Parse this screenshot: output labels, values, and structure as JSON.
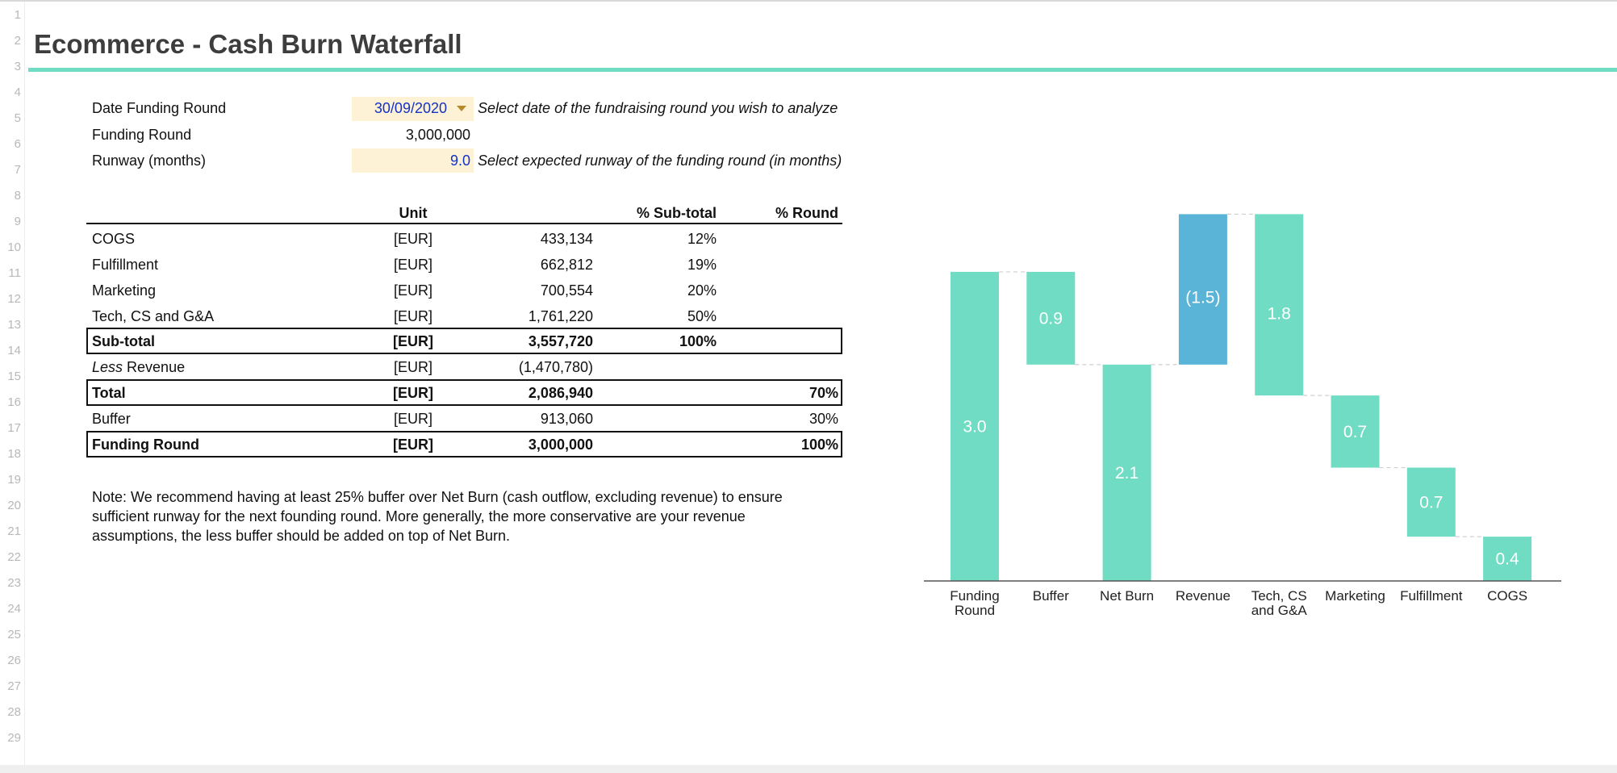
{
  "sheet": {
    "row_numbers": [
      "1",
      "2",
      "3",
      "4",
      "5",
      "6",
      "7",
      "8",
      "9",
      "10",
      "11",
      "12",
      "13",
      "14",
      "15",
      "16",
      "17",
      "18",
      "19",
      "20",
      "21",
      "22",
      "23",
      "24",
      "25",
      "26",
      "27",
      "28",
      "29"
    ],
    "title": "Ecommerce - Cash Burn Waterfall"
  },
  "inputs": {
    "date_label": "Date Funding Round",
    "date_value": "30/09/2020",
    "date_hint": "Select date of the fundraising round you wish to analyze",
    "funding_label": "Funding Round",
    "funding_value": "3,000,000",
    "runway_label": "Runway (months)",
    "runway_value": "9.0",
    "runway_hint": "Select expected runway of the funding round (in months)"
  },
  "table": {
    "headers": {
      "unit": "Unit",
      "sub_pct": "% Sub-total",
      "round_pct": "% Round"
    },
    "rows": [
      {
        "label": "COGS",
        "unit": "[EUR]",
        "value": "433,134",
        "sub_pct": "12%",
        "round_pct": ""
      },
      {
        "label": "Fulfillment",
        "unit": "[EUR]",
        "value": "662,812",
        "sub_pct": "19%",
        "round_pct": ""
      },
      {
        "label": "Marketing",
        "unit": "[EUR]",
        "value": "700,554",
        "sub_pct": "20%",
        "round_pct": ""
      },
      {
        "label": "Tech, CS and G&A",
        "unit": "[EUR]",
        "value": "1,761,220",
        "sub_pct": "50%",
        "round_pct": ""
      },
      {
        "label": "Sub-total",
        "unit": "[EUR]",
        "value": "3,557,720",
        "sub_pct": "100%",
        "round_pct": ""
      },
      {
        "label_italic": "Less",
        "label": " Revenue",
        "unit": "[EUR]",
        "value": "(1,470,780)",
        "sub_pct": "",
        "round_pct": ""
      },
      {
        "label": "Total",
        "unit": "[EUR]",
        "value": "2,086,940",
        "sub_pct": "",
        "round_pct": "70%"
      },
      {
        "label": "Buffer",
        "unit": "[EUR]",
        "value": "913,060",
        "sub_pct": "",
        "round_pct": "30%"
      },
      {
        "label": "Funding Round",
        "unit": "[EUR]",
        "value": "3,000,000",
        "sub_pct": "",
        "round_pct": "100%"
      }
    ]
  },
  "note": "Note: We recommend having at least 25% buffer over Net Burn (cash outflow, excluding revenue) to ensure sufficient runway for the next founding round. More generally, the more conservative are your revenue assumptions, the less buffer should be added on top of Net Burn.",
  "colors": {
    "accent": "#6fdcc3",
    "revenue": "#5ab4d8",
    "input_fill": "#fdf1d6",
    "input_text": "#1432c8"
  },
  "chart_data": {
    "type": "bar",
    "subtype": "waterfall",
    "ylim": [
      0,
      3.9
    ],
    "categories": [
      "Funding Round",
      "Buffer",
      "Net Burn",
      "Revenue",
      "Tech, CS and G&A",
      "Marketing",
      "Fulfillment",
      "COGS"
    ],
    "category_lines": [
      [
        "Funding",
        "Round"
      ],
      [
        "Buffer"
      ],
      [
        "Net Burn"
      ],
      [
        "Revenue"
      ],
      [
        "Tech, CS",
        "and G&A"
      ],
      [
        "Marketing"
      ],
      [
        "Fulfillment"
      ],
      [
        "COGS"
      ]
    ],
    "bars": [
      {
        "base": 0,
        "top": 3.0,
        "label": "3.0",
        "kind": "total"
      },
      {
        "base": 2.1,
        "top": 3.0,
        "label": "0.9",
        "kind": "step"
      },
      {
        "base": 0,
        "top": 2.1,
        "label": "2.1",
        "kind": "total"
      },
      {
        "base": 2.1,
        "top": 3.56,
        "label": "(1.5)",
        "kind": "revenue"
      },
      {
        "base": 1.8,
        "top": 3.56,
        "label": "1.8",
        "kind": "step"
      },
      {
        "base": 1.1,
        "top": 1.8,
        "label": "0.7",
        "kind": "step"
      },
      {
        "base": 0.43,
        "top": 1.1,
        "label": "0.7",
        "kind": "step"
      },
      {
        "base": 0,
        "top": 0.43,
        "label": "0.4",
        "kind": "step"
      }
    ],
    "gridlines": false,
    "legend": "none"
  }
}
